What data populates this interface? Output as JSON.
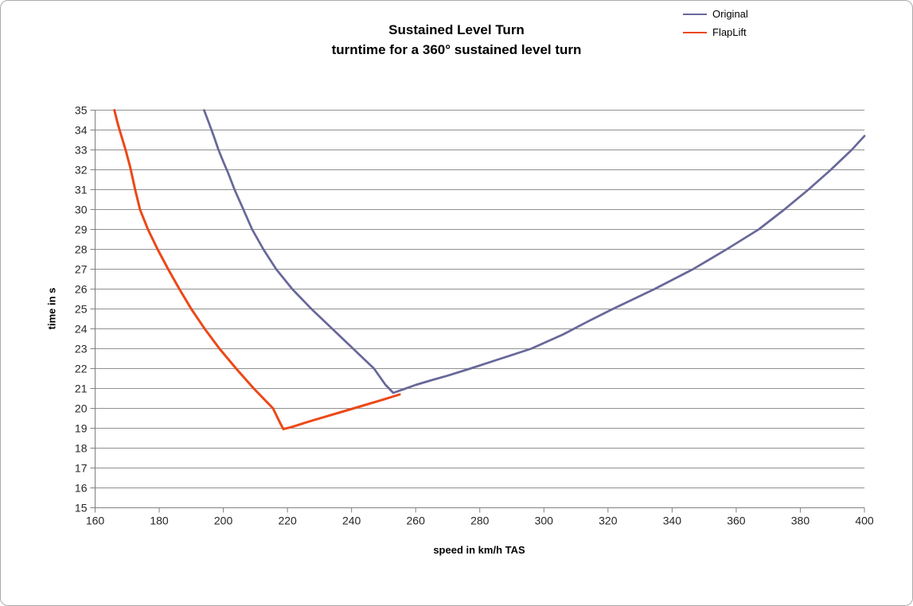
{
  "chart": {
    "title_line1": "Sustained Level Turn",
    "title_line2": "turntime for a 360°  sustained level turn"
  },
  "chart_data": {
    "type": "line",
    "title": "Sustained Level Turn",
    "subtitle": "turntime for a 360° sustained level turn",
    "xlabel": "speed in km/h TAS",
    "ylabel": "time in s",
    "xlim": [
      160,
      400
    ],
    "ylim": [
      15,
      35
    ],
    "x_ticks": [
      160,
      180,
      200,
      220,
      240,
      260,
      280,
      300,
      320,
      340,
      360,
      380,
      400
    ],
    "y_ticks": [
      15,
      16,
      17,
      18,
      19,
      20,
      21,
      22,
      23,
      24,
      25,
      26,
      27,
      28,
      29,
      30,
      31,
      32,
      33,
      34,
      35
    ],
    "grid": "horizontal",
    "grid_color": "#909090",
    "axis_color": "#808080",
    "tick_color": "#262626",
    "legend_position": "top-right",
    "series": [
      {
        "name": "Original",
        "color": "#68689a",
        "width": 2.75,
        "points": [
          [
            194,
            35
          ],
          [
            195.5,
            34.35
          ],
          [
            197,
            33.7
          ],
          [
            198.5,
            33
          ],
          [
            200,
            32.4
          ],
          [
            201.6,
            31.8
          ],
          [
            203.5,
            31
          ],
          [
            206,
            30.1
          ],
          [
            209,
            29
          ],
          [
            212.5,
            28
          ],
          [
            216.5,
            27
          ],
          [
            221.5,
            26
          ],
          [
            227.5,
            25
          ],
          [
            234,
            24
          ],
          [
            240.5,
            23
          ],
          [
            247,
            22
          ],
          [
            250.5,
            21.2
          ],
          [
            253,
            20.78
          ],
          [
            256,
            20.95
          ],
          [
            260,
            21.18
          ],
          [
            265,
            21.42
          ],
          [
            270,
            21.65
          ],
          [
            277,
            22
          ],
          [
            286.5,
            22.5
          ],
          [
            296,
            23
          ],
          [
            306,
            23.72
          ],
          [
            313.5,
            24.35
          ],
          [
            321.5,
            25
          ],
          [
            334.5,
            26
          ],
          [
            346.5,
            27
          ],
          [
            357,
            28
          ],
          [
            367,
            29
          ],
          [
            375,
            30
          ],
          [
            382.5,
            31
          ],
          [
            389.5,
            32
          ],
          [
            396,
            33
          ],
          [
            400,
            33.7
          ]
        ]
      },
      {
        "name": "FlapLift",
        "color": "#ec4817",
        "width": 3,
        "points": [
          [
            166,
            35
          ],
          [
            167,
            34.35
          ],
          [
            168.2,
            33.7
          ],
          [
            169.5,
            33
          ],
          [
            171,
            32.1
          ],
          [
            172.5,
            31
          ],
          [
            174,
            30
          ],
          [
            176.5,
            29
          ],
          [
            179.5,
            28
          ],
          [
            182.8,
            27
          ],
          [
            186.3,
            26
          ],
          [
            190,
            25
          ],
          [
            194.2,
            24
          ],
          [
            198.8,
            23
          ],
          [
            204,
            22
          ],
          [
            209.5,
            21
          ],
          [
            215.5,
            20
          ],
          [
            217.6,
            19.3
          ],
          [
            218.7,
            18.96
          ],
          [
            221,
            19.05
          ],
          [
            228,
            19.4
          ],
          [
            236,
            19.78
          ],
          [
            244,
            20.16
          ],
          [
            250,
            20.45
          ],
          [
            255,
            20.7
          ]
        ]
      }
    ]
  }
}
